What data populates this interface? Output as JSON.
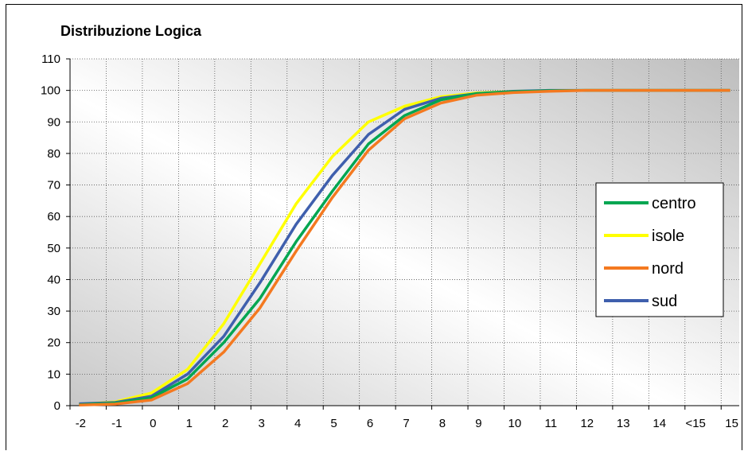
{
  "chart_data": {
    "type": "line",
    "title": "Distribuzione Logica",
    "xlabel": "",
    "ylabel": "",
    "categories": [
      "-2",
      "-1",
      "0",
      "1",
      "2",
      "3",
      "4",
      "5",
      "6",
      "7",
      "8",
      "9",
      "10",
      "11",
      "12",
      "13",
      "14",
      "<15",
      "15"
    ],
    "ylim": [
      0,
      110
    ],
    "yticks": [
      0,
      10,
      20,
      30,
      40,
      50,
      60,
      70,
      80,
      90,
      100,
      110
    ],
    "grid": true,
    "legend_position": "right",
    "series": [
      {
        "name": "centro",
        "color": "#00a651",
        "values": [
          0.3,
          0.8,
          2.5,
          8.5,
          20,
          34,
          52,
          68,
          83,
          92,
          97,
          99,
          99.6,
          99.9,
          100,
          100,
          100,
          100,
          100
        ]
      },
      {
        "name": "isole",
        "color": "#ffff00",
        "values": [
          0.5,
          1.2,
          4,
          11.5,
          26,
          45,
          64,
          79,
          90,
          95,
          98,
          99.2,
          99.7,
          99.9,
          100,
          100,
          100,
          100,
          100
        ]
      },
      {
        "name": "nord",
        "color": "#f47920",
        "values": [
          0.2,
          0.5,
          1.8,
          7,
          17,
          31,
          49,
          66,
          81,
          91,
          96,
          98.5,
          99.3,
          99.7,
          100,
          100,
          100,
          100,
          100
        ]
      },
      {
        "name": "sud",
        "color": "#3f5fad",
        "values": [
          0.6,
          1,
          3,
          10,
          22,
          39,
          57.5,
          73,
          86,
          94,
          97.5,
          99,
          99.7,
          100,
          100,
          100,
          100,
          100,
          100
        ]
      }
    ]
  }
}
